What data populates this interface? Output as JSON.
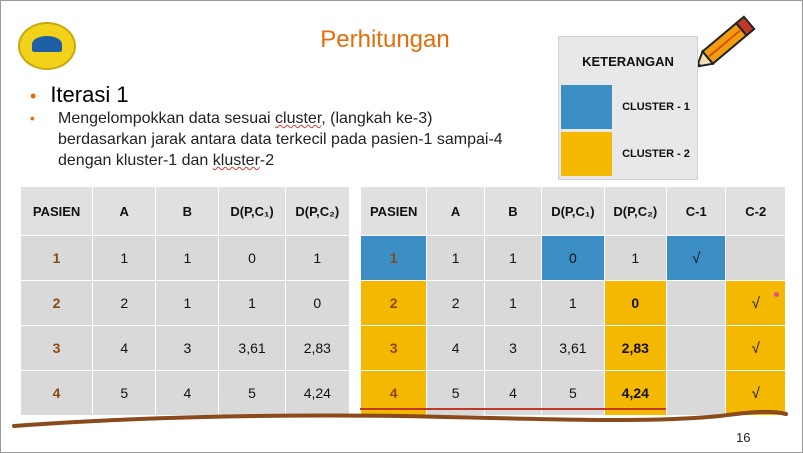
{
  "title": "Perhitungan",
  "bullet1": "Iterasi 1",
  "bullet2": {
    "part1": "Mengelompokkan data sesuai ",
    "cluster_word": "cluster",
    "part2": ", (langkah ke-3) berdasarkan jarak antara data terkecil pada pasien-1 sampai-4 dengan kluster-1 dan ",
    "kluster_word": "kluster",
    "part3": "-2"
  },
  "legend": {
    "heading": "KETERANGAN",
    "items": [
      {
        "label": "CLUSTER - 1",
        "color": "#3b8fc4"
      },
      {
        "label": "CLUSTER - 2",
        "color": "#f5b800"
      }
    ]
  },
  "table1": {
    "headers": [
      "PASIEN",
      "A",
      "B",
      "D(P,C₁)",
      "D(P,C₂)"
    ],
    "rows": [
      [
        "1",
        "1",
        "1",
        "0",
        "1"
      ],
      [
        "2",
        "2",
        "1",
        "1",
        "0"
      ],
      [
        "3",
        "4",
        "3",
        "3,61",
        "2,83"
      ],
      [
        "4",
        "5",
        "4",
        "5",
        "4,24"
      ]
    ]
  },
  "table2": {
    "headers": [
      "PASIEN",
      "A",
      "B",
      "D(P,C₁)",
      "D(P,C₂)",
      "C-1",
      "C-2"
    ],
    "rows": [
      [
        "1",
        "1",
        "1",
        "0",
        "1",
        "√",
        ""
      ],
      [
        "2",
        "2",
        "1",
        "1",
        "0",
        "",
        "√"
      ],
      [
        "3",
        "4",
        "3",
        "3,61",
        "2,83",
        "",
        "√"
      ],
      [
        "4",
        "5",
        "4",
        "5",
        "4,24",
        "",
        "√"
      ]
    ]
  },
  "page_number": "16",
  "colors": {
    "accent": "#e46c0a",
    "cluster1": "#3b8fc4",
    "cluster2": "#f5b800"
  }
}
